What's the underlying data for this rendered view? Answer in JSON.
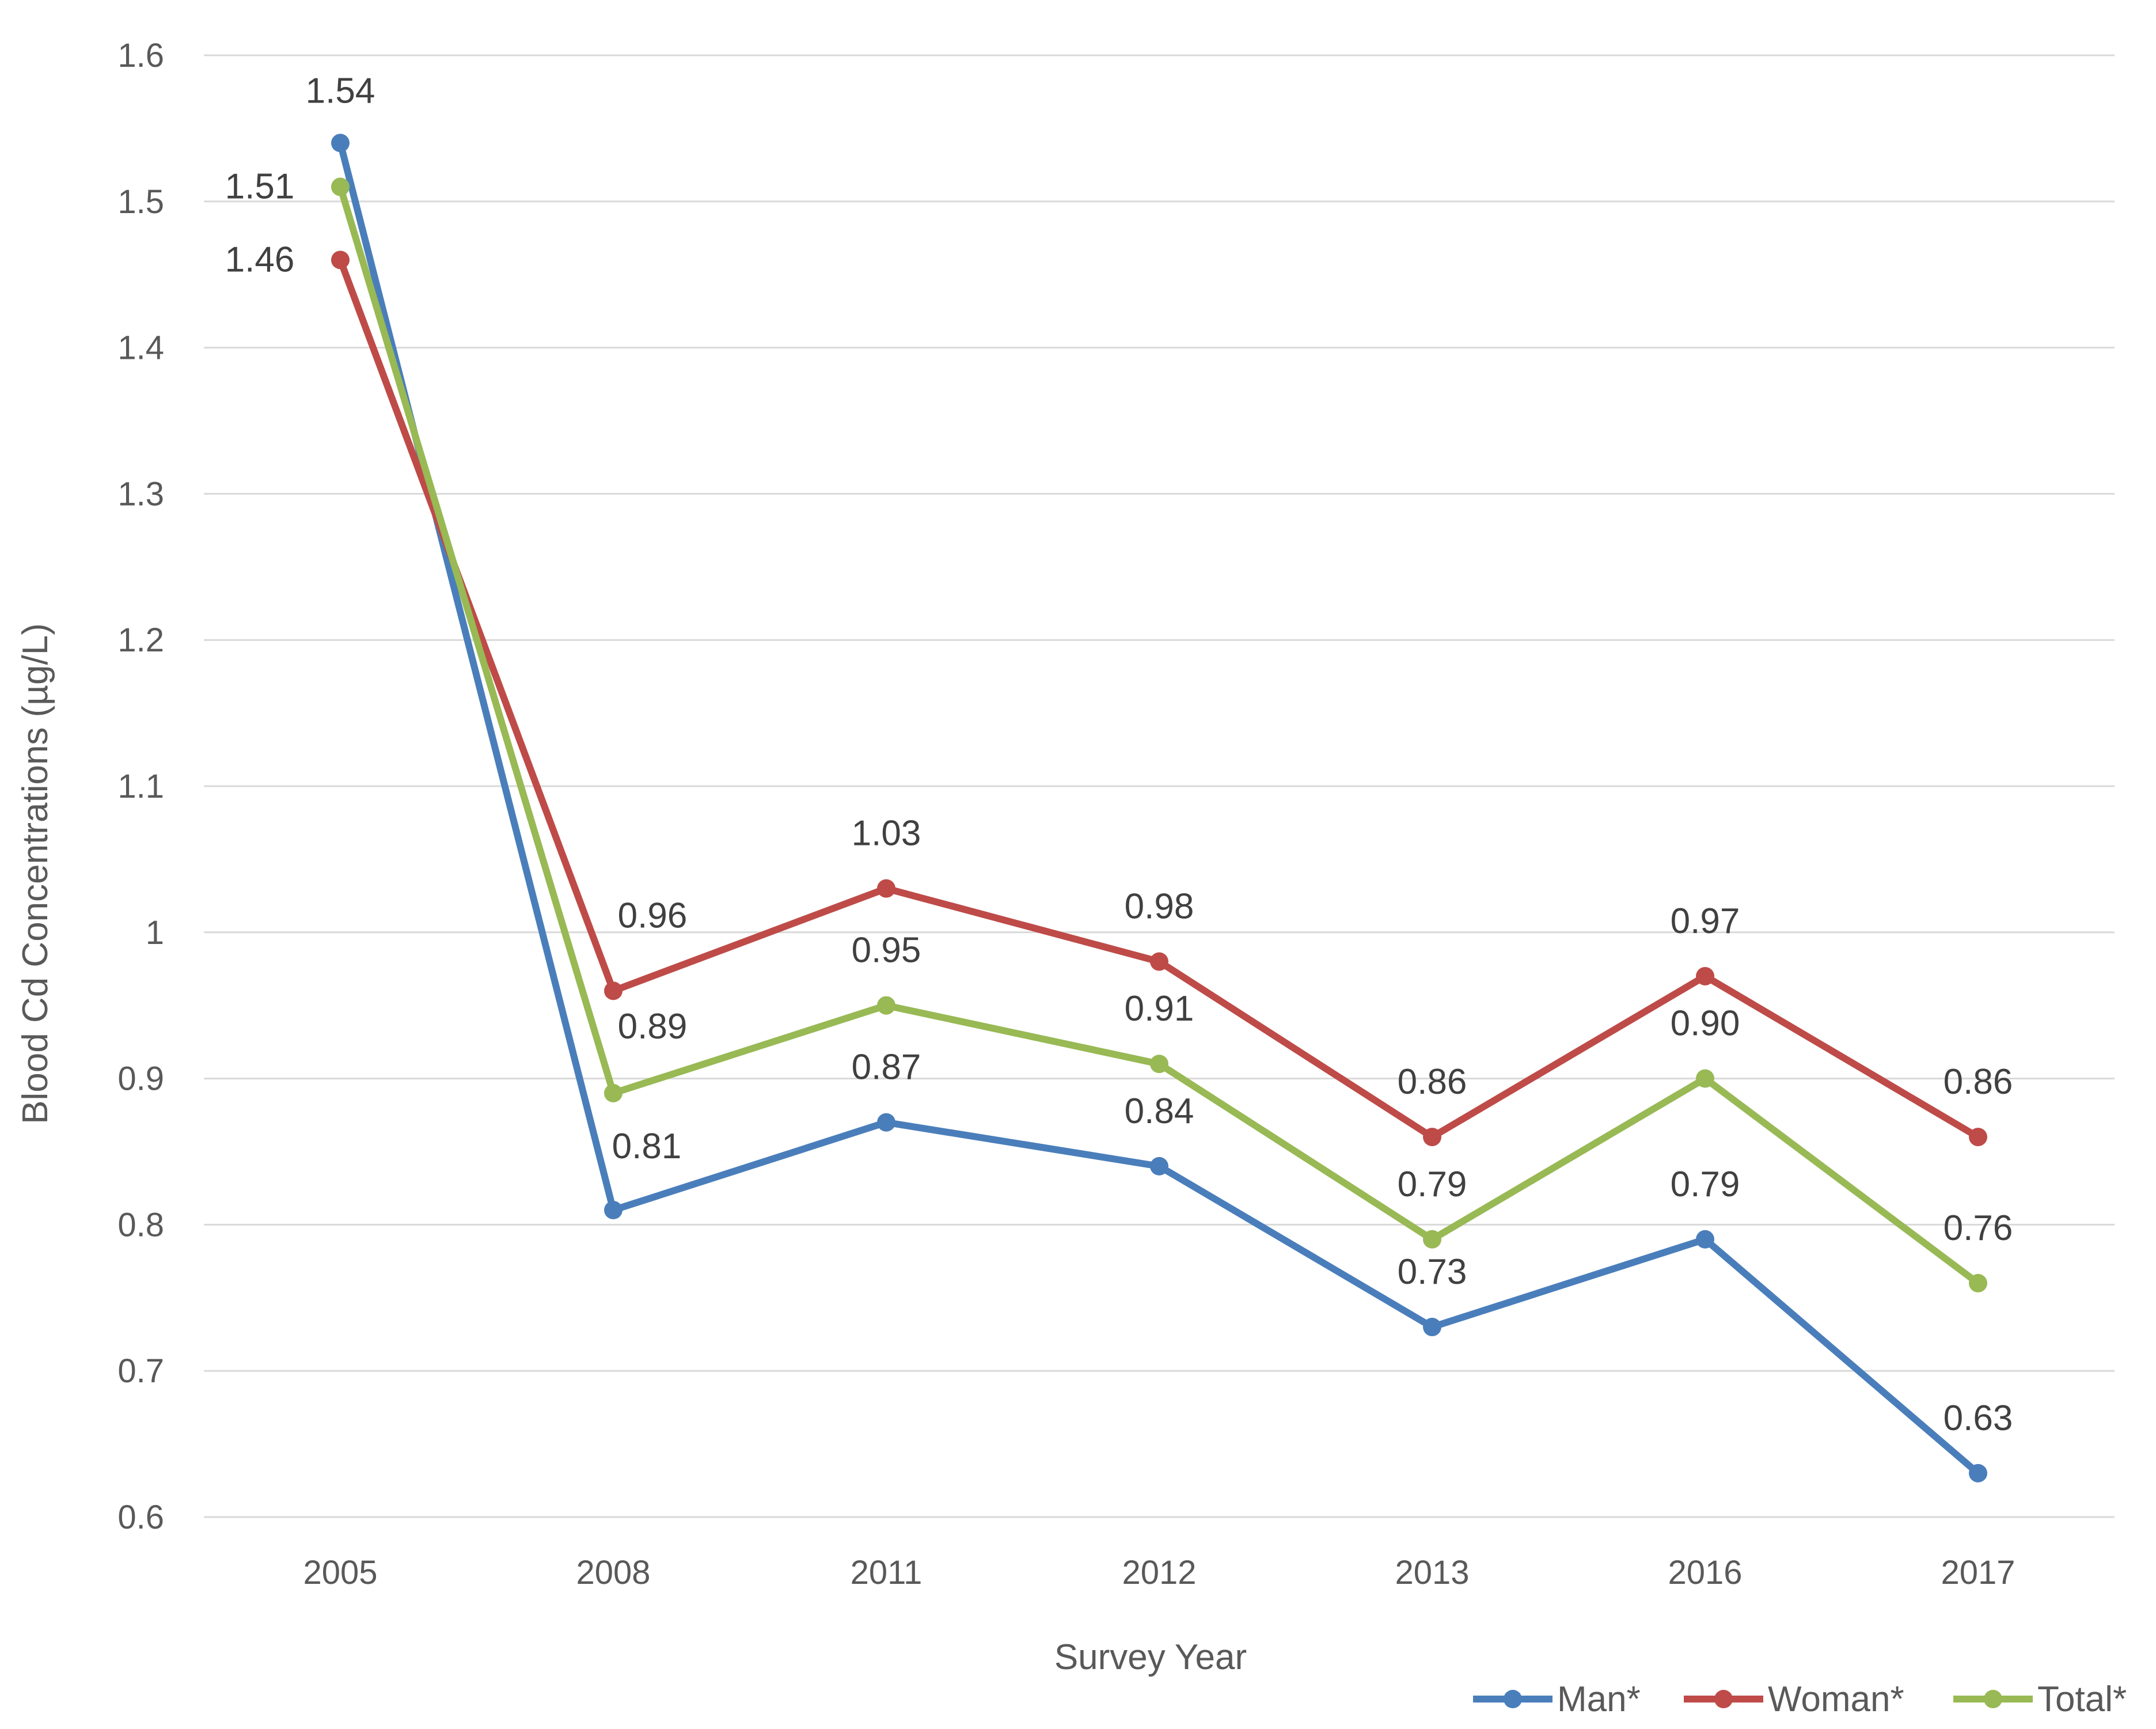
{
  "chart_data": {
    "type": "line",
    "title": "",
    "xlabel": "Survey Year",
    "ylabel": "Blood Cd Concentrations (µg/L)",
    "categories": [
      "2005",
      "2008",
      "2011",
      "2012",
      "2013",
      "2016",
      "2017"
    ],
    "ylim": [
      0.6,
      1.6
    ],
    "yticks": [
      "0.6",
      "0.7",
      "0.8",
      "0.9",
      "1",
      "1.1",
      "1.2",
      "1.3",
      "1.4",
      "1.5",
      "1.6"
    ],
    "grid": true,
    "legend_position": "bottom-right",
    "series": [
      {
        "name": "Man*",
        "color": "#4a7ebb",
        "values": [
          1.54,
          0.81,
          0.87,
          0.84,
          0.73,
          0.79,
          0.63
        ],
        "labels": [
          "1.54",
          "0.81",
          "0.87",
          "0.84",
          "0.73",
          "0.79",
          "0.63"
        ]
      },
      {
        "name": "Woman*",
        "color": "#be4b48",
        "values": [
          1.46,
          0.96,
          1.03,
          0.98,
          0.86,
          0.97,
          0.86
        ],
        "labels": [
          "1.46",
          "0.96",
          "1.03",
          "0.98",
          "0.86",
          "0.97",
          "0.86"
        ]
      },
      {
        "name": "Total*",
        "color": "#98b954",
        "values": [
          1.51,
          0.89,
          0.95,
          0.91,
          0.79,
          0.9,
          0.76
        ],
        "labels": [
          "1.51",
          "0.89",
          "0.95",
          "0.91",
          "0.79",
          "0.90",
          "0.76"
        ]
      }
    ]
  }
}
